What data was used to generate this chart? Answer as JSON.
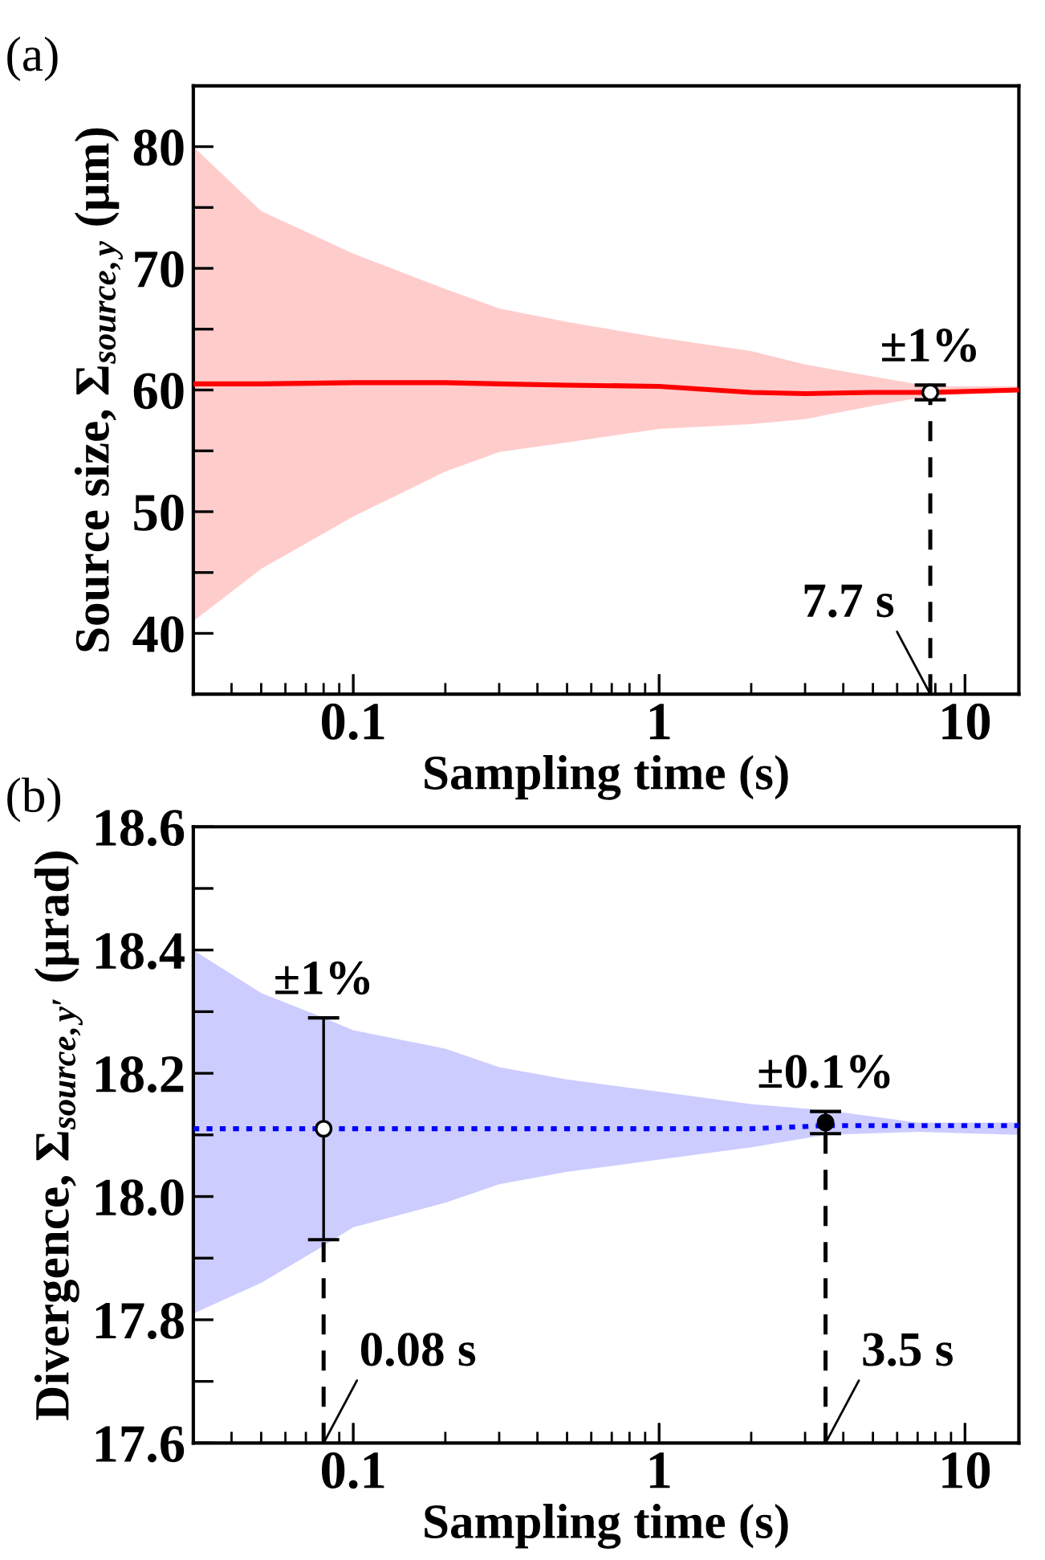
{
  "chart_data": [
    {
      "type": "line",
      "title": "(a)",
      "xlabel": "Sampling time (s)",
      "ylabel": "Source size, Σ$_{source,y}$ (μm)",
      "log": "x",
      "xlim": [
        0.03,
        15
      ],
      "xticks": [
        0.1,
        1,
        10
      ],
      "ylim": [
        35,
        85
      ],
      "yticks": [
        40,
        {
          "value": 45,
          "label": null
        },
        50,
        {
          "value": 55,
          "label": null
        },
        60,
        {
          "value": 65,
          "label": null
        },
        70,
        {
          "value": 75,
          "label": null
        },
        80
      ],
      "grid": false,
      "x": [
        0.03,
        0.05,
        0.1,
        0.2,
        0.3,
        0.5,
        1,
        2,
        3,
        5,
        7.7,
        15
      ],
      "series": [
        {
          "type": "line",
          "color": "#ff0000",
          "line_style": "solid",
          "marker": "none",
          "values": [
            60.5,
            60.5,
            60.6,
            60.6,
            60.5,
            60.4,
            60.3,
            59.8,
            59.7,
            59.8,
            59.8,
            60.0
          ],
          "lower": [
            41,
            45.3,
            49.6,
            53.3,
            54.9,
            55.7,
            56.8,
            57.2,
            57.6,
            58.7,
            59.5,
            59.9
          ],
          "upper": [
            80,
            74.7,
            71.2,
            68.3,
            66.7,
            65.6,
            64.3,
            63.2,
            62.1,
            61.1,
            60.3,
            60.3
          ]
        },
        {
          "type": "scatter",
          "x": [
            7.7
          ],
          "colors": [
            "#ffffff"
          ],
          "marker": "circle",
          "values": [
            59.8
          ],
          "errors": [
            0.6
          ]
        }
      ],
      "ref_lines": [
        {
          "axis": "x",
          "value": 7.7,
          "label": "7.7 s",
          "line_style": "dashed",
          "color": "#000000"
        }
      ],
      "annotations": [
        {
          "text": "±1%",
          "x": 7.7,
          "y": 60.4
        }
      ]
    },
    {
      "type": "line",
      "title": "(b)",
      "xlabel": "Sampling time (s)",
      "ylabel": "Divergence, Σ$_{source,y′}$ (μrad)",
      "log": "x",
      "xlim": [
        0.03,
        15
      ],
      "xticks": [
        0.1,
        1,
        10
      ],
      "ylim": [
        17.6,
        18.6
      ],
      "yticks": [
        17.6,
        {
          "value": 17.7,
          "label": null
        },
        17.8,
        {
          "value": 17.9,
          "label": null
        },
        {
          "value": 18.0,
          "label": "18.0"
        },
        {
          "value": 18.1,
          "label": null
        },
        18.2,
        {
          "value": 18.3,
          "label": null
        },
        18.4,
        {
          "value": 18.5,
          "label": null
        },
        18.6
      ],
      "grid": false,
      "x": [
        0.03,
        0.05,
        0.08,
        0.1,
        0.2,
        0.3,
        0.5,
        1,
        2,
        3.5,
        7,
        15
      ],
      "series": [
        {
          "type": "line",
          "color": "#0000ff",
          "line_style": "dotted",
          "marker": "none",
          "values": [
            18.11,
            18.11,
            18.11,
            18.11,
            18.11,
            18.11,
            18.11,
            18.11,
            18.11,
            18.115,
            18.115,
            18.115
          ],
          "lower": [
            17.81,
            17.86,
            17.92,
            17.95,
            17.99,
            18.02,
            18.04,
            18.06,
            18.08,
            18.1,
            18.105,
            18.1
          ],
          "upper": [
            18.4,
            18.33,
            18.29,
            18.27,
            18.24,
            18.21,
            18.19,
            18.17,
            18.15,
            18.14,
            18.12,
            18.12
          ]
        },
        {
          "type": "scatter",
          "x": [
            0.08,
            3.5
          ],
          "colors": [
            "#ffffff",
            "#000000"
          ],
          "marker": "circle",
          "values": [
            18.11,
            18.12
          ],
          "errors": [
            0.18,
            0.018
          ]
        }
      ],
      "ref_lines": [
        {
          "axis": "x",
          "value": 0.08,
          "label": "0.08 s",
          "line_style": "dashed",
          "color": "#000000"
        },
        {
          "axis": "x",
          "value": 3.5,
          "label": "3.5 s",
          "line_style": "dashed",
          "color": "#000000"
        }
      ],
      "annotations": [
        {
          "text": "±1%",
          "x": 0.08,
          "y": 18.29
        },
        {
          "text": "±0.1%",
          "x": 3.5,
          "y": 18.138
        }
      ]
    }
  ]
}
